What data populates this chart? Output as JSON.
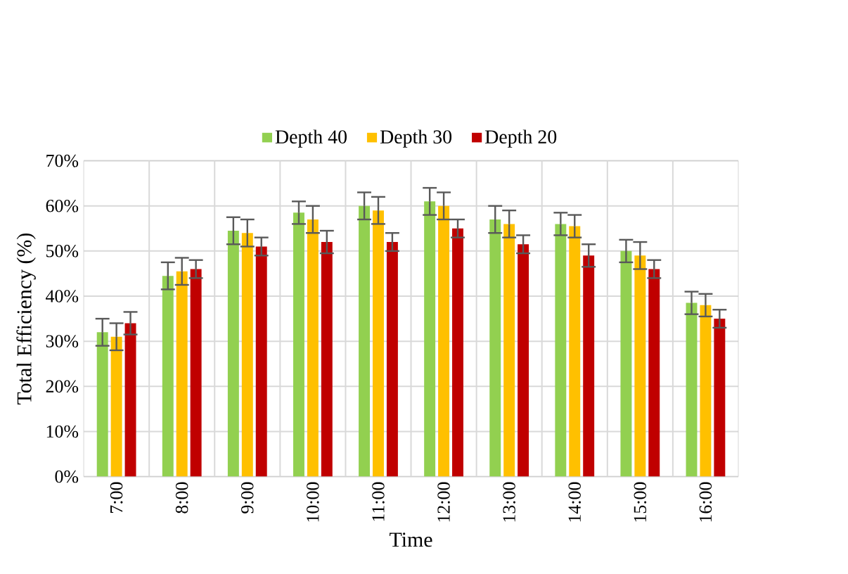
{
  "chart_data": {
    "type": "bar",
    "xlabel": "Time",
    "ylabel": "Total Efficiency (%)",
    "categories": [
      "7:00",
      "8:00",
      "9:00",
      "10:00",
      "11:00",
      "12:00",
      "13:00",
      "14:00",
      "15:00",
      "16:00"
    ],
    "series": [
      {
        "name": "Depth 40",
        "color": "#92d050",
        "values": [
          32,
          44.5,
          54.5,
          58.5,
          60,
          61,
          57,
          56,
          50,
          38.5
        ],
        "errors": [
          3,
          3,
          3,
          2.5,
          3,
          3,
          3,
          2.5,
          2.5,
          2.5
        ]
      },
      {
        "name": "Depth 30",
        "color": "#ffc000",
        "values": [
          31,
          45.5,
          54,
          57,
          59,
          60,
          56,
          55.5,
          49,
          38
        ],
        "errors": [
          3,
          3,
          3,
          3,
          3,
          3,
          3,
          2.5,
          3,
          2.5
        ]
      },
      {
        "name": "Depth 20",
        "color": "#c00000",
        "values": [
          34,
          46,
          51,
          52,
          52,
          55,
          51.5,
          49,
          46,
          35
        ],
        "errors": [
          2.5,
          2,
          2,
          2.5,
          2,
          2,
          2,
          2.5,
          2,
          2
        ]
      }
    ],
    "ylim": [
      0,
      70
    ],
    "yticks": [
      {
        "value": 0,
        "label": "0%"
      },
      {
        "value": 10,
        "label": "10%"
      },
      {
        "value": 20,
        "label": "20%"
      },
      {
        "value": 30,
        "label": "30%"
      },
      {
        "value": 40,
        "label": "40%"
      },
      {
        "value": 50,
        "label": "50%"
      },
      {
        "value": 60,
        "label": "60%"
      },
      {
        "value": 70,
        "label": "70%"
      }
    ],
    "grid": true,
    "legend": "top"
  }
}
